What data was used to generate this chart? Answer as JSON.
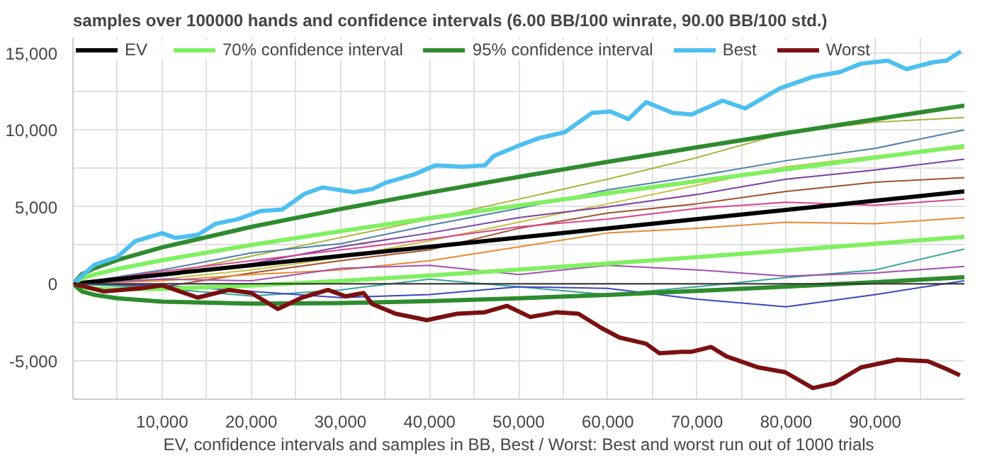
{
  "chart_data": {
    "type": "line",
    "title": "samples over 100000 hands and confidence intervals (6.00 BB/100 winrate, 90.00 BB/100 std.)",
    "xlabel": "EV, confidence intervals and samples in BB, Best / Worst: Best and worst run out of 1000 trials",
    "xlim": [
      0,
      100000
    ],
    "ylim": [
      -7500,
      16000
    ],
    "xticks": [
      {
        "value": 5000,
        "label": null
      },
      {
        "value": 10000,
        "label": "10,000"
      },
      {
        "value": 15000,
        "label": null
      },
      {
        "value": 20000,
        "label": "20,000"
      },
      {
        "value": 25000,
        "label": null
      },
      {
        "value": 30000,
        "label": "30,000"
      },
      {
        "value": 35000,
        "label": null
      },
      {
        "value": 40000,
        "label": "40,000"
      },
      {
        "value": 45000,
        "label": null
      },
      {
        "value": 50000,
        "label": "50,000"
      },
      {
        "value": 55000,
        "label": null
      },
      {
        "value": 60000,
        "label": "60,000"
      },
      {
        "value": 65000,
        "label": null
      },
      {
        "value": 70000,
        "label": "70,000"
      },
      {
        "value": 75000,
        "label": null
      },
      {
        "value": 80000,
        "label": "80,000"
      },
      {
        "value": 85000,
        "label": null
      },
      {
        "value": 90000,
        "label": "90,000"
      },
      {
        "value": 95000,
        "label": null
      }
    ],
    "yticks": [
      {
        "value": -7500,
        "label": null
      },
      {
        "value": -5000,
        "label": "-5,000"
      },
      {
        "value": -2500,
        "label": null
      },
      0,
      {
        "value": 2500,
        "label": null
      },
      {
        "value": 5000,
        "label": "5,000"
      },
      {
        "value": 7500,
        "label": null
      },
      {
        "value": 10000,
        "label": "10,000"
      },
      {
        "value": 12500,
        "label": null
      },
      {
        "value": 15000,
        "label": "15,000"
      }
    ],
    "grid": true,
    "legend": "top left",
    "line_style": "solid",
    "marker": "none",
    "ref_lines": [
      {
        "axis": "y",
        "value": 0,
        "color": "#333333"
      }
    ],
    "series": [
      {
        "color": "#a8b43c",
        "x": [
          0,
          10000,
          20000,
          30000,
          40000,
          50000,
          60000,
          70000,
          80000,
          90000,
          100000
        ],
        "values": [
          0,
          600,
          1800,
          3000,
          4200,
          5500,
          6800,
          8200,
          9800,
          10500,
          10800
        ]
      },
      {
        "color": "#4f7fa8",
        "x": [
          0,
          10000,
          20000,
          30000,
          40000,
          50000,
          60000,
          70000,
          80000,
          90000,
          100000
        ],
        "values": [
          0,
          900,
          2000,
          2600,
          3800,
          4900,
          6100,
          7000,
          8000,
          8800,
          10000
        ]
      },
      {
        "color": "#c8c040",
        "x": [
          0,
          10000,
          20000,
          30000,
          40000,
          50000,
          60000,
          70000,
          80000,
          90000,
          100000
        ],
        "values": [
          0,
          300,
          900,
          1700,
          2800,
          4000,
          5200,
          6400,
          7600,
          8300,
          8800
        ]
      },
      {
        "color": "#7b3fa0",
        "x": [
          0,
          10000,
          20000,
          30000,
          40000,
          50000,
          60000,
          70000,
          80000,
          90000,
          100000
        ],
        "values": [
          0,
          500,
          1300,
          2400,
          3300,
          4300,
          5000,
          5800,
          6800,
          7400,
          8100
        ]
      },
      {
        "color": "#a0522d",
        "x": [
          0,
          10000,
          20000,
          30000,
          40000,
          50000,
          60000,
          70000,
          80000,
          90000,
          100000
        ],
        "values": [
          0,
          -200,
          700,
          1500,
          2200,
          3600,
          4600,
          5200,
          6000,
          6600,
          6900
        ]
      },
      {
        "color": "#d9448f",
        "x": [
          0,
          10000,
          20000,
          30000,
          40000,
          50000,
          60000,
          70000,
          80000,
          90000,
          100000
        ],
        "values": [
          0,
          800,
          1500,
          2200,
          2900,
          3700,
          4200,
          4900,
          5300,
          5100,
          5500
        ]
      },
      {
        "color": "#e88a2e",
        "x": [
          0,
          10000,
          20000,
          30000,
          40000,
          50000,
          60000,
          70000,
          80000,
          90000,
          100000
        ],
        "values": [
          0,
          200,
          600,
          900,
          1500,
          2400,
          3300,
          3600,
          4000,
          3900,
          4300
        ]
      },
      {
        "color": "#3aa39a",
        "x": [
          0,
          10000,
          20000,
          30000,
          40000,
          50000,
          60000,
          70000,
          80000,
          90000,
          100000
        ],
        "values": [
          0,
          -300,
          -800,
          -400,
          300,
          -200,
          -700,
          -200,
          400,
          900,
          2260
        ]
      },
      {
        "color": "#a050b0",
        "x": [
          0,
          10000,
          20000,
          30000,
          40000,
          50000,
          60000,
          70000,
          80000,
          90000,
          100000
        ],
        "values": [
          0,
          300,
          200,
          1000,
          1200,
          600,
          1200,
          900,
          500,
          700,
          1130
        ]
      },
      {
        "color": "#3b47c0",
        "x": [
          0,
          10000,
          20000,
          30000,
          40000,
          50000,
          60000,
          70000,
          80000,
          90000,
          100000
        ],
        "values": [
          0,
          -100,
          -500,
          -900,
          -700,
          -200,
          -300,
          -1000,
          -1500,
          -700,
          200
        ]
      },
      {
        "name": "EV",
        "color": "#000000",
        "x": [
          0,
          100000
        ],
        "values": [
          0,
          6000
        ]
      },
      {
        "name": "70% confidence interval",
        "color": "#80f060",
        "x": [
          0,
          1000,
          2500,
          5000,
          10000,
          20000,
          30000,
          40000,
          50000,
          60000,
          70000,
          80000,
          90000,
          100000
        ],
        "values": [
          0,
          355,
          616,
          959,
          1532,
          2519,
          3415,
          4265,
          5084,
          5884,
          6667,
          7438,
          8197,
          8948
        ]
      },
      {
        "color": "#80f060",
        "x": [
          0,
          1000,
          2500,
          5000,
          10000,
          20000,
          30000,
          40000,
          50000,
          60000,
          70000,
          80000,
          90000,
          100000
        ],
        "values": [
          0,
          -235,
          -316,
          -359,
          -332,
          -119,
          185,
          535,
          916,
          1316,
          1733,
          2162,
          2603,
          3052
        ]
      },
      {
        "name": "95% confidence interval",
        "color": "#2e8b2e",
        "x": [
          0,
          1000,
          2500,
          5000,
          10000,
          20000,
          30000,
          40000,
          50000,
          60000,
          70000,
          80000,
          90000,
          100000
        ],
        "values": [
          0,
          619,
          1032,
          1547,
          2364,
          3695,
          4856,
          5928,
          6944,
          7922,
          8867,
          9790,
          10692,
          11578
        ]
      },
      {
        "color": "#2e8b2e",
        "x": [
          0,
          1000,
          2500,
          5000,
          10000,
          20000,
          30000,
          40000,
          50000,
          60000,
          70000,
          80000,
          90000,
          100000
        ],
        "values": [
          0,
          -499,
          -732,
          -947,
          -1164,
          -1295,
          -1256,
          -1128,
          -944,
          -722,
          -467,
          -190,
          108,
          422
        ]
      },
      {
        "name": "Best",
        "color": "#4dbff0",
        "x": [
          0,
          2400,
          5000,
          7000,
          10000,
          11500,
          14000,
          16000,
          18500,
          21000,
          23500,
          26000,
          28000,
          31500,
          33600,
          35100,
          38200,
          40700,
          43700,
          46200,
          47200,
          49800,
          52200,
          55200,
          58200,
          60300,
          62300,
          64300,
          67300,
          69400,
          72900,
          75400,
          79300,
          83000,
          86000,
          88400,
          91400,
          93500,
          96500,
          98000,
          99600
        ],
        "values": [
          0,
          1230,
          1750,
          2770,
          3290,
          2980,
          3180,
          3900,
          4200,
          4720,
          4830,
          5850,
          6260,
          5950,
          6160,
          6570,
          7090,
          7700,
          7600,
          7700,
          8300,
          8930,
          9450,
          9860,
          11100,
          11200,
          10700,
          11800,
          11100,
          11000,
          11900,
          11400,
          12700,
          13450,
          13750,
          14300,
          14500,
          13950,
          14400,
          14500,
          15100
        ]
      },
      {
        "name": "Worst",
        "color": "#7a1010",
        "x": [
          0,
          3500,
          7500,
          10000,
          14000,
          17500,
          20000,
          23000,
          25600,
          28600,
          30600,
          32600,
          33600,
          36200,
          39700,
          43100,
          46200,
          48700,
          51300,
          54300,
          56700,
          59300,
          61300,
          64300,
          65800,
          68300,
          69400,
          71600,
          73300,
          76900,
          79900,
          83000,
          85400,
          88400,
          92500,
          95900,
          98000,
          99500
        ],
        "values": [
          0,
          -500,
          -300,
          -100,
          -900,
          -400,
          -600,
          -1640,
          -920,
          -400,
          -820,
          -600,
          -1330,
          -1950,
          -2360,
          -1950,
          -1850,
          -1440,
          -2160,
          -1850,
          -1950,
          -2880,
          -3490,
          -3900,
          -4520,
          -4420,
          -4420,
          -4110,
          -4720,
          -5440,
          -5750,
          -6780,
          -6470,
          -5440,
          -4930,
          -5030,
          -5540,
          -5950
        ]
      }
    ]
  }
}
